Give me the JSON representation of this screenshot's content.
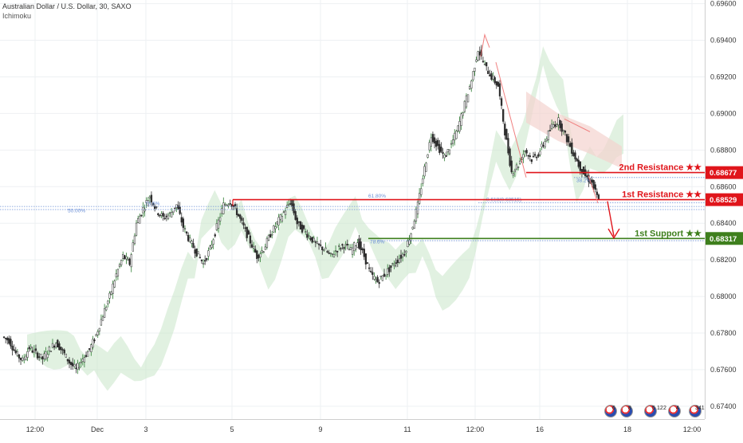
{
  "header": {
    "title": "Australian Dollar / U.S. Dollar, 30, SAXO",
    "indicator": "Ichimoku"
  },
  "colors": {
    "candle": "#2d2d2d",
    "up_wick": "#2e7d32",
    "resistance": "#e0151b",
    "support": "#3e7f1d",
    "fib": "#6b8fd6",
    "cloud_green": "#c8e6c9",
    "cloud_red": "#f3d3cf",
    "arrow": "#f08080"
  },
  "price_axis": {
    "ticks": [
      "0.69600",
      "0.69400",
      "0.69200",
      "0.69000",
      "0.68800",
      "0.68600",
      "0.68400",
      "0.68200",
      "0.68000",
      "0.67800",
      "0.67600",
      "0.67400"
    ]
  },
  "time_axis": {
    "ticks": [
      "12:00",
      "Dec",
      "3",
      "5",
      "9",
      "11",
      "12:00",
      "16",
      "18",
      "12:00"
    ]
  },
  "levels": [
    {
      "label": "2nd Resistance ★★",
      "price_label": "0.68677",
      "value": 0.68677,
      "color": "#e0151b"
    },
    {
      "label": "1st Resistance ★★",
      "price_label": "0.68529",
      "value": 0.68529,
      "color": "#e0151b"
    },
    {
      "label": "1st Support ★★",
      "price_label": "0.68317",
      "value": 0.68317,
      "color": "#3e7f1d"
    }
  ],
  "fib_labels": {
    "left_786": "78.6%",
    "left_50": "50.00%",
    "mid_618": "61.80%",
    "mid_618b": "0.618(0.68515)",
    "right_382": "38.2%",
    "support_786": "78.6%"
  },
  "events": {
    "counts": [
      "6",
      "8",
      "5",
      "12",
      "2",
      "4",
      "341"
    ]
  },
  "chart_data": {
    "type": "candlestick",
    "title": "Australian Dollar / U.S. Dollar, 30, SAXO",
    "ylim": [
      0.6733,
      0.6962
    ],
    "y_ticks": [
      0.696,
      0.694,
      0.692,
      0.69,
      0.688,
      0.686,
      0.684,
      0.682,
      0.68,
      0.678,
      0.676,
      0.674
    ],
    "x_ticks": [
      "12:00",
      "Dec",
      "3",
      "5",
      "9",
      "11",
      "12:00",
      "16",
      "18",
      "12:00"
    ],
    "grid": true,
    "path_close": [
      0.6778,
      0.6776,
      0.6769,
      0.6765,
      0.6772,
      0.6769,
      0.6766,
      0.6771,
      0.6775,
      0.677,
      0.6764,
      0.676,
      0.6766,
      0.6771,
      0.6779,
      0.679,
      0.68,
      0.6812,
      0.6822,
      0.6818,
      0.684,
      0.6848,
      0.6855,
      0.6847,
      0.6843,
      0.6845,
      0.685,
      0.6838,
      0.683,
      0.6824,
      0.6818,
      0.6826,
      0.6838,
      0.685,
      0.6852,
      0.6846,
      0.6838,
      0.683,
      0.6822,
      0.6826,
      0.6834,
      0.684,
      0.6846,
      0.6852,
      0.684,
      0.6836,
      0.6832,
      0.6828,
      0.6826,
      0.6822,
      0.6826,
      0.6828,
      0.6825,
      0.683,
      0.6822,
      0.6812,
      0.6808,
      0.6812,
      0.6816,
      0.682,
      0.6824,
      0.6835,
      0.685,
      0.687,
      0.6888,
      0.6882,
      0.6876,
      0.6883,
      0.6892,
      0.6905,
      0.6918,
      0.6935,
      0.6926,
      0.692,
      0.6915,
      0.689,
      0.6868,
      0.6872,
      0.688,
      0.6875,
      0.6878,
      0.6885,
      0.6893,
      0.6896,
      0.6888,
      0.688,
      0.6872,
      0.6866,
      0.6862,
      0.6852
    ],
    "cloud": {
      "green_span": [
        0.679,
        0.687
      ],
      "red_span": [
        0.6865,
        0.6905
      ]
    },
    "horizontal_levels": [
      {
        "name": "2nd Resistance",
        "value": 0.68677
      },
      {
        "name": "1st Resistance",
        "value": 0.68529
      },
      {
        "name": "1st Support",
        "value": 0.68317
      }
    ]
  }
}
